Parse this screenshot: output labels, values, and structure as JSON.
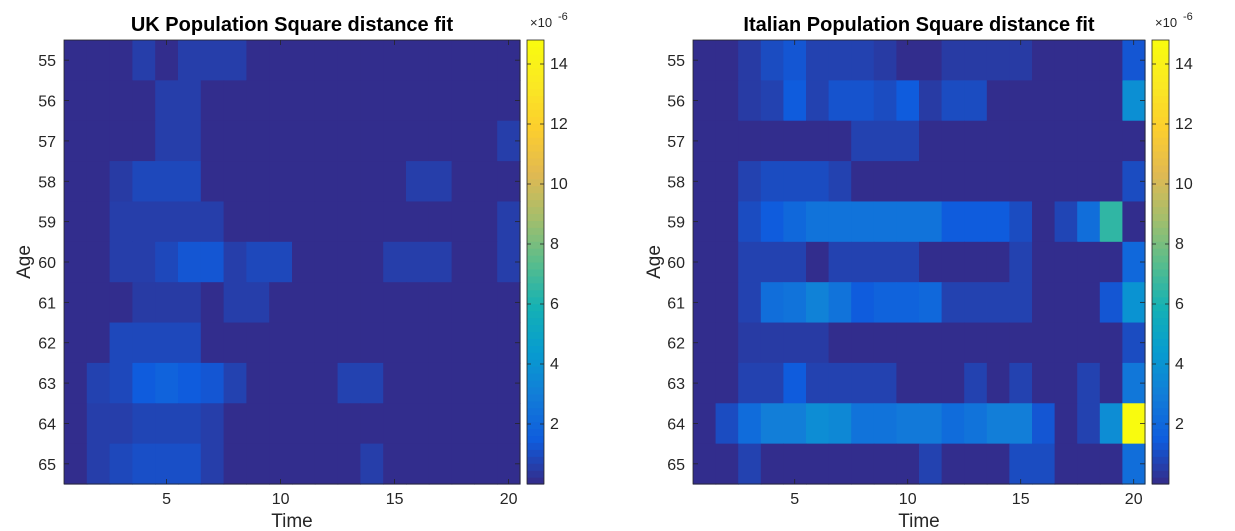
{
  "chart_data": [
    {
      "type": "heatmap",
      "title": "UK Population Square distance fit",
      "xlabel": "Time",
      "ylabel": "Age",
      "x": [
        1,
        2,
        3,
        4,
        5,
        6,
        7,
        8,
        9,
        10,
        11,
        12,
        13,
        14,
        15,
        16,
        17,
        18,
        19,
        20
      ],
      "y": [
        55,
        56,
        57,
        58,
        59,
        60,
        61,
        62,
        63,
        64,
        65
      ],
      "xticks": [
        5,
        10,
        15,
        20
      ],
      "yticks": [
        55,
        56,
        57,
        58,
        59,
        60,
        61,
        62,
        63,
        64,
        65
      ],
      "colorbar": {
        "range": [
          0,
          14.8
        ],
        "ticks": [
          2,
          4,
          6,
          8,
          10,
          12,
          14
        ],
        "exponent": "×10",
        "exponent_power": "-6"
      },
      "grid": false,
      "values": [
        [
          0.1,
          0.1,
          0.1,
          0.6,
          0.1,
          0.6,
          0.6,
          0.6,
          0.1,
          0.1,
          0.1,
          0.1,
          0.1,
          0.1,
          0.1,
          0.1,
          0.1,
          0.1,
          0.1,
          0.1
        ],
        [
          0.1,
          0.1,
          0.1,
          0.1,
          0.6,
          0.6,
          0.1,
          0.1,
          0.1,
          0.1,
          0.1,
          0.1,
          0.1,
          0.1,
          0.1,
          0.1,
          0.1,
          0.1,
          0.1,
          0.1
        ],
        [
          0.1,
          0.1,
          0.1,
          0.1,
          0.6,
          0.6,
          0.1,
          0.1,
          0.1,
          0.1,
          0.1,
          0.1,
          0.1,
          0.1,
          0.1,
          0.1,
          0.1,
          0.1,
          0.1,
          0.6
        ],
        [
          0.1,
          0.1,
          0.5,
          0.9,
          0.9,
          0.9,
          0.1,
          0.1,
          0.1,
          0.1,
          0.1,
          0.1,
          0.1,
          0.1,
          0.1,
          0.6,
          0.6,
          0.1,
          0.1,
          0.1
        ],
        [
          0.1,
          0.1,
          0.6,
          0.6,
          0.6,
          0.6,
          0.6,
          0.1,
          0.1,
          0.1,
          0.1,
          0.1,
          0.1,
          0.1,
          0.1,
          0.1,
          0.1,
          0.1,
          0.1,
          0.6
        ],
        [
          0.1,
          0.1,
          0.6,
          0.6,
          0.9,
          1.3,
          1.3,
          0.6,
          0.9,
          0.9,
          0.1,
          0.1,
          0.1,
          0.1,
          0.6,
          0.6,
          0.6,
          0.1,
          0.1,
          0.6
        ],
        [
          0.1,
          0.1,
          0.1,
          0.5,
          0.5,
          0.5,
          0.1,
          0.6,
          0.6,
          0.1,
          0.1,
          0.1,
          0.1,
          0.1,
          0.1,
          0.1,
          0.1,
          0.1,
          0.1,
          0.1
        ],
        [
          0.1,
          0.1,
          0.9,
          0.9,
          0.9,
          0.9,
          0.1,
          0.1,
          0.1,
          0.1,
          0.1,
          0.1,
          0.1,
          0.1,
          0.1,
          0.1,
          0.1,
          0.1,
          0.1,
          0.1
        ],
        [
          0.1,
          0.7,
          0.9,
          1.5,
          1.8,
          1.5,
          1.3,
          0.7,
          0.1,
          0.1,
          0.1,
          0.1,
          0.7,
          0.7,
          0.1,
          0.1,
          0.1,
          0.1,
          0.1,
          0.1
        ],
        [
          0.1,
          0.6,
          0.6,
          0.8,
          0.8,
          0.8,
          0.6,
          0.1,
          0.1,
          0.1,
          0.1,
          0.1,
          0.1,
          0.1,
          0.1,
          0.1,
          0.1,
          0.1,
          0.1,
          0.1
        ],
        [
          0.1,
          0.6,
          0.9,
          1.1,
          1.1,
          1.1,
          0.6,
          0.1,
          0.1,
          0.1,
          0.1,
          0.1,
          0.1,
          0.6,
          0.1,
          0.1,
          0.1,
          0.1,
          0.1,
          0.1
        ]
      ]
    },
    {
      "type": "heatmap",
      "title": "Italian Population Square distance fit",
      "xlabel": "Time",
      "ylabel": "Age",
      "x": [
        1,
        2,
        3,
        4,
        5,
        6,
        7,
        8,
        9,
        10,
        11,
        12,
        13,
        14,
        15,
        16,
        17,
        18,
        19,
        20
      ],
      "y": [
        55,
        56,
        57,
        58,
        59,
        60,
        61,
        62,
        63,
        64,
        65
      ],
      "xticks": [
        5,
        10,
        15,
        20
      ],
      "yticks": [
        55,
        56,
        57,
        58,
        59,
        60,
        61,
        62,
        63,
        64,
        65
      ],
      "colorbar": {
        "range": [
          0,
          14.8
        ],
        "ticks": [
          2,
          4,
          6,
          8,
          10,
          12,
          14
        ],
        "exponent": "×10",
        "exponent_power": "-6"
      },
      "grid": false,
      "values": [
        [
          0.1,
          0.1,
          0.5,
          1.0,
          1.3,
          0.7,
          0.7,
          0.7,
          0.5,
          0.1,
          0.1,
          0.5,
          0.5,
          0.5,
          0.5,
          0.1,
          0.1,
          0.1,
          0.1,
          1.3
        ],
        [
          0.1,
          0.1,
          0.5,
          0.7,
          1.5,
          0.7,
          1.2,
          1.2,
          1.0,
          1.5,
          0.5,
          1.0,
          1.0,
          0.1,
          0.1,
          0.1,
          0.1,
          0.1,
          0.1,
          3.8
        ],
        [
          0.1,
          0.1,
          0.1,
          0.1,
          0.1,
          0.1,
          0.1,
          0.7,
          0.7,
          0.7,
          0.1,
          0.1,
          0.1,
          0.1,
          0.1,
          0.1,
          0.1,
          0.1,
          0.1,
          0.1
        ],
        [
          0.1,
          0.1,
          0.7,
          1.0,
          1.0,
          1.0,
          0.7,
          0.1,
          0.1,
          0.1,
          0.1,
          0.1,
          0.1,
          0.1,
          0.1,
          0.1,
          0.1,
          0.1,
          0.1,
          1.0
        ],
        [
          0.1,
          0.1,
          1.0,
          1.5,
          2.0,
          2.5,
          2.5,
          2.5,
          2.5,
          2.5,
          2.5,
          1.5,
          1.5,
          1.5,
          1.0,
          0.1,
          0.8,
          2.3,
          6.5,
          0.1
        ],
        [
          0.1,
          0.1,
          0.7,
          0.7,
          0.7,
          0.1,
          0.7,
          0.7,
          0.7,
          0.7,
          0.1,
          0.1,
          0.1,
          0.1,
          0.7,
          0.1,
          0.1,
          0.1,
          0.1,
          2.0
        ],
        [
          0.1,
          0.1,
          0.7,
          2.3,
          2.5,
          3.2,
          2.5,
          1.5,
          1.8,
          1.8,
          2.0,
          0.7,
          0.7,
          0.7,
          0.7,
          0.1,
          0.1,
          0.1,
          1.3,
          4.0
        ],
        [
          0.1,
          0.1,
          0.5,
          0.5,
          0.5,
          0.5,
          0.1,
          0.1,
          0.1,
          0.1,
          0.1,
          0.1,
          0.1,
          0.1,
          0.1,
          0.1,
          0.1,
          0.1,
          0.1,
          1.0
        ],
        [
          0.1,
          0.1,
          0.7,
          0.7,
          1.5,
          0.7,
          0.7,
          0.7,
          0.7,
          0.1,
          0.1,
          0.1,
          0.7,
          0.1,
          0.7,
          0.1,
          0.1,
          0.7,
          0.1,
          2.7
        ],
        [
          0.1,
          1.0,
          2.2,
          3.0,
          3.0,
          3.7,
          3.5,
          2.5,
          2.5,
          2.8,
          2.8,
          2.2,
          2.5,
          3.0,
          3.0,
          1.3,
          0.1,
          0.7,
          3.7,
          14.8
        ],
        [
          0.1,
          0.1,
          0.7,
          0.1,
          0.1,
          0.1,
          0.1,
          0.1,
          0.1,
          0.1,
          0.7,
          0.1,
          0.1,
          0.1,
          1.0,
          1.0,
          0.1,
          0.1,
          0.1,
          2.3
        ]
      ]
    }
  ]
}
